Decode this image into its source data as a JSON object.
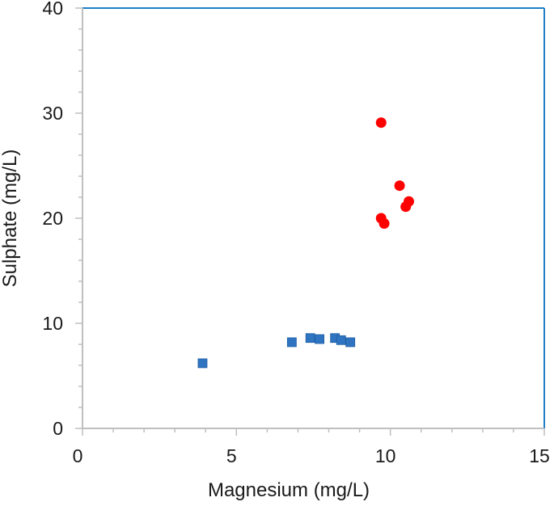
{
  "chart_data": {
    "type": "scatter",
    "title": "",
    "xlabel": "Magnesium (mg/L)",
    "ylabel": "Sulphate (mg/L)",
    "xlim": [
      0,
      15
    ],
    "ylim": [
      0,
      40
    ],
    "x_ticks": [
      0,
      5,
      10,
      15
    ],
    "y_ticks": [
      0,
      10,
      20,
      30,
      40
    ],
    "x_tick_labels": [
      "0",
      "5",
      "10",
      "15"
    ],
    "y_tick_labels": [
      "0",
      "10",
      "20",
      "30",
      "40"
    ],
    "grid": false,
    "legend": "none",
    "series": [
      {
        "marker": "square",
        "color": "#2f74c0",
        "points": [
          {
            "x": 3.9,
            "y": 6.2
          },
          {
            "x": 6.8,
            "y": 8.2
          },
          {
            "x": 7.4,
            "y": 8.6
          },
          {
            "x": 7.7,
            "y": 8.5
          },
          {
            "x": 8.2,
            "y": 8.6
          },
          {
            "x": 8.4,
            "y": 8.4
          },
          {
            "x": 8.7,
            "y": 8.2
          }
        ]
      },
      {
        "marker": "circle",
        "color": "#ff0000",
        "points": [
          {
            "x": 9.7,
            "y": 29.1
          },
          {
            "x": 10.3,
            "y": 23.1
          },
          {
            "x": 10.6,
            "y": 21.6
          },
          {
            "x": 10.5,
            "y": 21.1
          },
          {
            "x": 9.7,
            "y": 20.0
          },
          {
            "x": 9.8,
            "y": 19.5
          }
        ]
      }
    ]
  },
  "style": {
    "axis_color": "#bfbfbf",
    "frame_color": "#1f7fc4"
  }
}
